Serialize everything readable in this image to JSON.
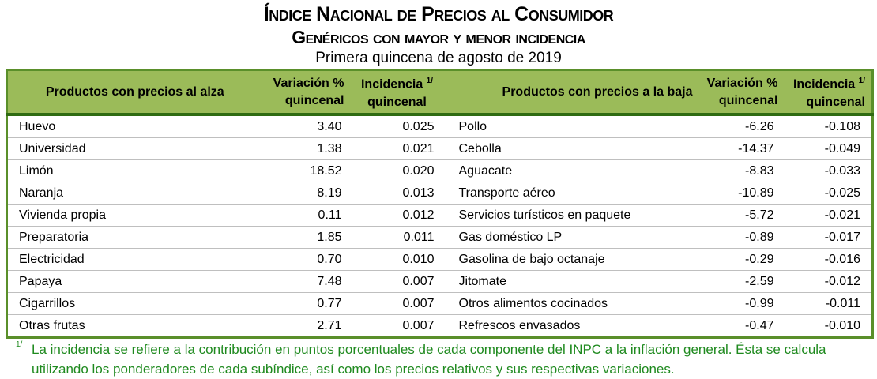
{
  "title": "Índice Nacional de Precios al Consumidor",
  "subtitle": "Genéricos con mayor y menor incidencia",
  "period": "Primera quincena de agosto de 2019",
  "headers": {
    "up_products": "Productos con precios al alza",
    "variation": "Variación %",
    "variation2": "quincenal",
    "incidence": "Incidencia",
    "incidence2": "quincenal",
    "note_mark": "1/",
    "down_products": "Productos con precios a la baja"
  },
  "rows": [
    {
      "up": "Huevo",
      "up_var": "3.40",
      "up_inc": "0.025",
      "down": "Pollo",
      "down_var": "-6.26",
      "down_inc": "-0.108"
    },
    {
      "up": "Universidad",
      "up_var": "1.38",
      "up_inc": "0.021",
      "down": "Cebolla",
      "down_var": "-14.37",
      "down_inc": "-0.049"
    },
    {
      "up": "Limón",
      "up_var": "18.52",
      "up_inc": "0.020",
      "down": "Aguacate",
      "down_var": "-8.83",
      "down_inc": "-0.033"
    },
    {
      "up": "Naranja",
      "up_var": "8.19",
      "up_inc": "0.013",
      "down": "Transporte aéreo",
      "down_var": "-10.89",
      "down_inc": "-0.025"
    },
    {
      "up": "Vivienda propia",
      "up_var": "0.11",
      "up_inc": "0.012",
      "down": "Servicios turísticos en paquete",
      "down_var": "-5.72",
      "down_inc": "-0.021"
    },
    {
      "up": "Preparatoria",
      "up_var": "1.85",
      "up_inc": "0.011",
      "down": "Gas doméstico LP",
      "down_var": "-0.89",
      "down_inc": "-0.017"
    },
    {
      "up": "Electricidad",
      "up_var": "0.70",
      "up_inc": "0.010",
      "down": "Gasolina de bajo octanaje",
      "down_var": "-0.29",
      "down_inc": "-0.016"
    },
    {
      "up": "Papaya",
      "up_var": "7.48",
      "up_inc": "0.007",
      "down": "Jitomate",
      "down_var": "-2.59",
      "down_inc": "-0.012"
    },
    {
      "up": "Cigarrillos",
      "up_var": "0.77",
      "up_inc": "0.007",
      "down": "Otros alimentos cocinados",
      "down_var": "-0.99",
      "down_inc": "-0.011"
    },
    {
      "up": "Otras frutas",
      "up_var": "2.71",
      "up_inc": "0.007",
      "down": "Refrescos envasados",
      "down_var": "-0.47",
      "down_inc": "-0.010"
    }
  ],
  "footnote": {
    "mark": "1/",
    "text": "La incidencia se refiere a la contribución en puntos porcentuales de cada componente del INPC a la inflación general. Ésta se calcula utilizando los ponderadores de cada subíndice, así como los precios relativos y sus respectivas variaciones."
  }
}
